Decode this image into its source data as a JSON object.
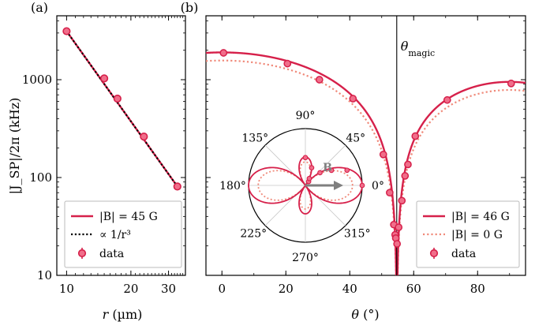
{
  "chart_data": [
    {
      "type": "line",
      "panel": "(a)",
      "yscale": "log",
      "xscale": "log",
      "xlabel_var": "r",
      "xlabel_unit": " (µm)",
      "ylabel": "|J_SP|/2π (kHz)",
      "xlim": [
        9,
        36
      ],
      "ylim": [
        10,
        4500
      ],
      "x_ticks": [
        10,
        20,
        30
      ],
      "x_tick_labels": [
        "10",
        "20",
        "30"
      ],
      "y_ticks": [
        10,
        100,
        1000
      ],
      "y_tick_labels": [
        "10",
        "100",
        "1000"
      ],
      "series": [
        {
          "name": "|B| = 45 G",
          "style": "solid",
          "color": "#d6204a",
          "x": [
            10,
            33
          ],
          "y": [
            3130,
            81
          ]
        },
        {
          "name": "∝ 1/r³",
          "style": "dotted",
          "color": "#000000",
          "x": [
            10,
            33
          ],
          "y": [
            3130,
            81
          ]
        },
        {
          "name": "data",
          "style": "markers",
          "color": "#d6204a",
          "x": [
            10.0,
            15.0,
            17.3,
            23.0,
            33.0
          ],
          "y": [
            3130,
            1030,
            640,
            262,
            81
          ]
        }
      ],
      "legend": {
        "position": "bottom-left",
        "entries": [
          {
            "label": "|B| = 45 G",
            "style": "solid"
          },
          {
            "label": "∝ 1/r³",
            "style": "dotted"
          },
          {
            "label": "data",
            "style": "markers"
          }
        ]
      }
    },
    {
      "type": "line",
      "panel": "(b)",
      "yscale": "log",
      "xlabel_var": "θ",
      "xlabel_unit": " (°)",
      "xlim": [
        -5,
        95
      ],
      "ylim": [
        10,
        4500
      ],
      "x_ticks": [
        0,
        20,
        40,
        60,
        80
      ],
      "x_tick_labels": [
        "0",
        "20",
        "40",
        "60",
        "80"
      ],
      "y_ticks": [
        10,
        100,
        1000
      ],
      "annotation": {
        "text": "θ",
        "subscript": "magic",
        "x": 54.7
      },
      "series": [
        {
          "name": "|B| = 46 G",
          "style": "solid",
          "color": "#d6204a",
          "amplitude": 1900,
          "x": [],
          "y": []
        },
        {
          "name": "|B| = 0 G",
          "style": "dotted",
          "color": "#f08a7a",
          "amplitude": 1570,
          "x": [],
          "y": []
        },
        {
          "name": "data",
          "style": "markers",
          "color": "#d6204a",
          "x": [
            0.5,
            20.5,
            30.5,
            41,
            50.5,
            52.5,
            53.8,
            54.2,
            54.4,
            54.8,
            55.3,
            56.3,
            57.3,
            58.2,
            60.5,
            70.5,
            90.5
          ],
          "y": [
            1880,
            1460,
            1000,
            640,
            172,
            70,
            33,
            26,
            24,
            21,
            31,
            58,
            104,
            136,
            265,
            620,
            915
          ]
        }
      ],
      "legend": {
        "position": "bottom-right",
        "entries": [
          {
            "label": "|B| = 46 G",
            "style": "solid"
          },
          {
            "label": "|B| = 0 G",
            "style": "dotted"
          },
          {
            "label": "data",
            "style": "markers"
          }
        ]
      }
    },
    {
      "type": "polar",
      "panel": "inset",
      "angle_labels": [
        "0°",
        "45°",
        "90°",
        "135°",
        "180°",
        "225°",
        "270°",
        "315°"
      ],
      "field_label": "B",
      "series": [
        {
          "name": "|B| = 46 G",
          "style": "solid",
          "color": "#d6204a"
        },
        {
          "name": "|B| = 0 G",
          "style": "dotted",
          "color": "#f08a7a"
        },
        {
          "name": "data",
          "style": "markers",
          "color": "#d6204a",
          "theta_deg": [
            0,
            20,
            30,
            41,
            50.5,
            60.5,
            70.5,
            90
          ],
          "r": [
            1.0,
            0.78,
            0.53,
            0.34,
            0.09,
            0.14,
            0.33,
            0.49
          ]
        }
      ]
    }
  ]
}
